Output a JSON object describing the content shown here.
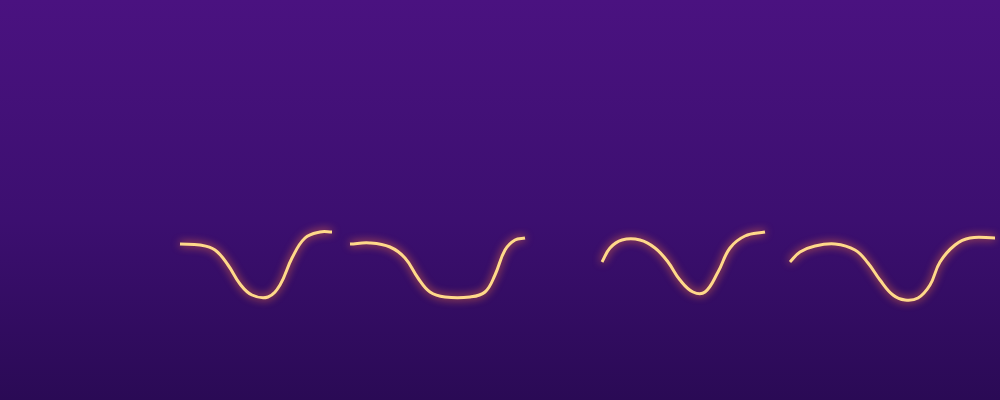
{
  "chart_data": {
    "type": "line",
    "xlim": [
      0,
      1000
    ],
    "ylim": [
      0,
      400
    ],
    "xticks": [],
    "yticks": [],
    "grid": false,
    "tick_labels": false,
    "series": [
      {
        "color": "#ffd98a",
        "x": [
          180,
          200,
          215,
          228,
          240,
          252,
          268,
          280,
          292,
          305,
          320,
          332
        ],
        "values": [
          156,
          155,
          150,
          135,
          116,
          105,
          103,
          115,
          142,
          162,
          168,
          168
        ]
      },
      {
        "color": "#ffd98a",
        "x": [
          350,
          370,
          390,
          405,
          418,
          430,
          445,
          470,
          485,
          495,
          505,
          515,
          525
        ],
        "values": [
          156,
          157,
          153,
          142,
          122,
          108,
          103,
          103,
          108,
          125,
          150,
          160,
          162
        ]
      },
      {
        "color": "#ffd98a",
        "x": [
          602,
          610,
          622,
          640,
          655,
          668,
          680,
          693,
          705,
          718,
          730,
          745,
          765
        ],
        "values": [
          138,
          152,
          160,
          160,
          152,
          138,
          120,
          108,
          108,
          128,
          152,
          164,
          168
        ]
      },
      {
        "color": "#ffd98a",
        "x": [
          790,
          800,
          815,
          835,
          855,
          868,
          880,
          893,
          905,
          918,
          930,
          940,
          955,
          970,
          995
        ],
        "values": [
          138,
          148,
          154,
          156,
          150,
          137,
          120,
          105,
          100,
          102,
          115,
          138,
          155,
          162,
          162
        ]
      }
    ]
  }
}
